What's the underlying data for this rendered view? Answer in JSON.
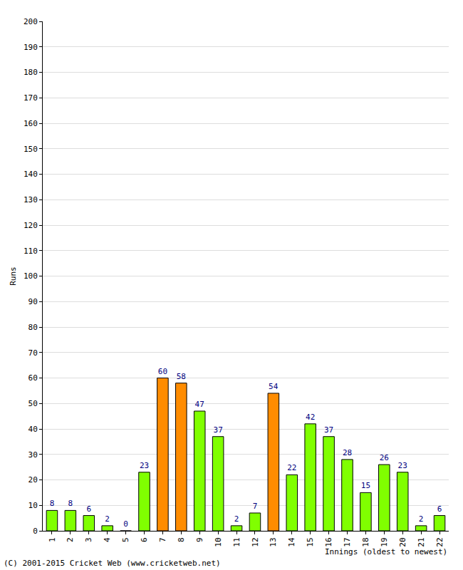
{
  "chart_data": {
    "type": "bar",
    "xlabel": "Innings (oldest to newest)",
    "ylabel": "Runs",
    "annotations": [
      "(C) 2001-2015 Cricket Web (www.cricketweb.net)"
    ],
    "categories": [
      "1",
      "2",
      "3",
      "4",
      "5",
      "6",
      "7",
      "8",
      "9",
      "10",
      "11",
      "12",
      "13",
      "14",
      "15",
      "16",
      "17",
      "18",
      "19",
      "20",
      "21",
      "22"
    ],
    "values": [
      8,
      8,
      6,
      2,
      0,
      23,
      60,
      58,
      47,
      37,
      2,
      7,
      54,
      22,
      42,
      37,
      28,
      15,
      26,
      23,
      2,
      6
    ],
    "colors": [
      "#80ff00",
      "#80ff00",
      "#80ff00",
      "#80ff00",
      "#80ff00",
      "#80ff00",
      "#ff8c00",
      "#ff8c00",
      "#80ff00",
      "#80ff00",
      "#80ff00",
      "#80ff00",
      "#ff8c00",
      "#80ff00",
      "#80ff00",
      "#80ff00",
      "#80ff00",
      "#80ff00",
      "#80ff00",
      "#80ff00",
      "#80ff00",
      "#80ff00"
    ],
    "ylim": [
      0,
      200
    ],
    "yticks": [
      0,
      10,
      20,
      30,
      40,
      50,
      60,
      70,
      80,
      90,
      100,
      110,
      120,
      130,
      140,
      150,
      160,
      170,
      180,
      190,
      200
    ],
    "grid": true,
    "data_labels": true
  }
}
